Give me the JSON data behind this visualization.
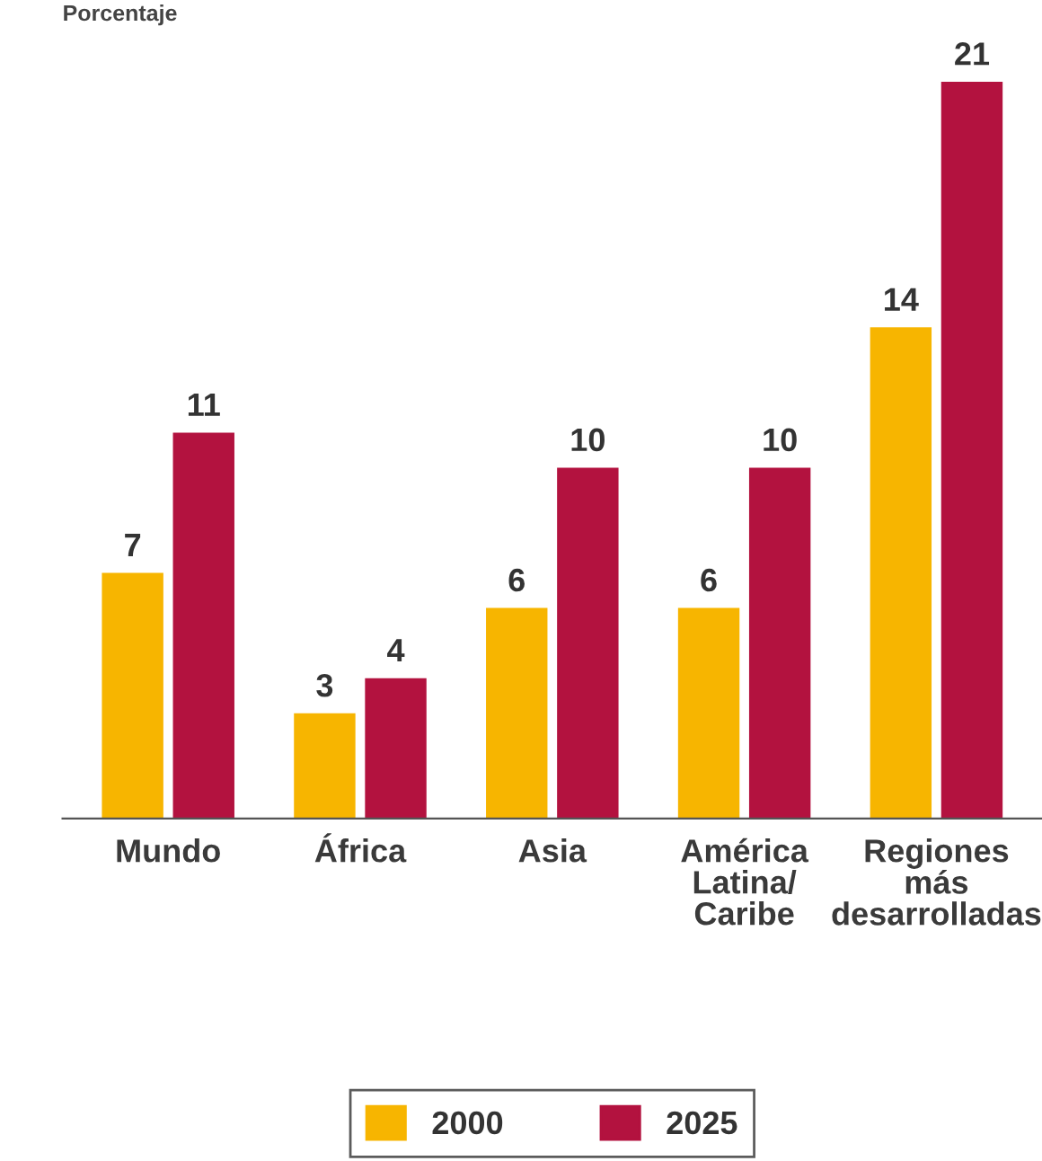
{
  "chart_data": {
    "type": "bar",
    "ylabel": "Porcentaje",
    "categories": [
      "Mundo",
      "África",
      "Asia",
      "América\nLatina/\nCaribe",
      "Regiones\nmás\ndesarrolladas"
    ],
    "series": [
      {
        "name": "2000",
        "color": "#f7b500",
        "values": [
          7,
          3,
          6,
          6,
          14
        ]
      },
      {
        "name": "2025",
        "color": "#b3123f",
        "values": [
          11,
          4,
          10,
          10,
          21
        ]
      }
    ],
    "data_labels": true,
    "legend": "bottom",
    "grid": false
  }
}
